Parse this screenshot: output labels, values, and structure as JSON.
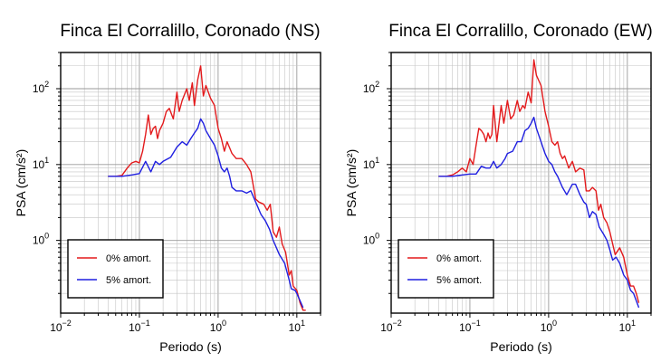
{
  "chart_data": [
    {
      "type": "line",
      "title": "Finca El Corralillo, Coronado (NS)",
      "xlabel": "Periodo (s)",
      "ylabel": "PSA (cm/s²)",
      "xscale": "log",
      "yscale": "log",
      "xlim": [
        0.01,
        20
      ],
      "ylim": [
        0.11,
        300
      ],
      "x_ticks": [
        {
          "base": "10",
          "exp": "−2"
        },
        {
          "base": "10",
          "exp": "−1"
        },
        {
          "base": "10",
          "exp": "0"
        },
        {
          "base": "10",
          "exp": "1"
        }
      ],
      "y_ticks": [
        {
          "base": "10",
          "exp": "0"
        },
        {
          "base": "10",
          "exp": "1"
        },
        {
          "base": "10",
          "exp": "2"
        }
      ],
      "grid": true,
      "legend": "bottom-left",
      "series": [
        {
          "name": "0% amort.",
          "color": "#e31a1c",
          "points": [
            [
              0.04,
              7
            ],
            [
              0.05,
              7
            ],
            [
              0.06,
              7.2
            ],
            [
              0.07,
              9
            ],
            [
              0.08,
              10.5
            ],
            [
              0.09,
              11
            ],
            [
              0.1,
              10.5
            ],
            [
              0.11,
              15
            ],
            [
              0.12,
              25
            ],
            [
              0.13,
              45
            ],
            [
              0.14,
              25
            ],
            [
              0.15,
              30
            ],
            [
              0.16,
              32
            ],
            [
              0.17,
              22
            ],
            [
              0.18,
              28
            ],
            [
              0.2,
              35
            ],
            [
              0.22,
              50
            ],
            [
              0.24,
              55
            ],
            [
              0.27,
              40
            ],
            [
              0.3,
              90
            ],
            [
              0.32,
              50
            ],
            [
              0.35,
              70
            ],
            [
              0.4,
              100
            ],
            [
              0.43,
              70
            ],
            [
              0.47,
              120
            ],
            [
              0.5,
              60
            ],
            [
              0.55,
              130
            ],
            [
              0.6,
              200
            ],
            [
              0.65,
              80
            ],
            [
              0.7,
              110
            ],
            [
              0.8,
              75
            ],
            [
              0.9,
              60
            ],
            [
              1.0,
              30
            ],
            [
              1.1,
              22
            ],
            [
              1.2,
              15
            ],
            [
              1.3,
              20
            ],
            [
              1.5,
              14
            ],
            [
              1.7,
              12
            ],
            [
              2.0,
              12
            ],
            [
              2.3,
              10
            ],
            [
              2.6,
              8
            ],
            [
              3.0,
              3.5
            ],
            [
              3.3,
              3.2
            ],
            [
              3.8,
              3
            ],
            [
              4.2,
              2.5
            ],
            [
              4.6,
              3
            ],
            [
              5.0,
              1.3
            ],
            [
              5.5,
              1.1
            ],
            [
              6.0,
              1.5
            ],
            [
              6.5,
              0.9
            ],
            [
              7.2,
              0.7
            ],
            [
              8.0,
              0.35
            ],
            [
              8.5,
              0.4
            ],
            [
              9.0,
              0.25
            ],
            [
              10,
              0.22
            ],
            [
              11,
              0.15
            ],
            [
              12,
              0.12
            ],
            [
              13,
              0.12
            ]
          ]
        },
        {
          "name": "5% amort.",
          "color": "#1f1fe0",
          "points": [
            [
              0.04,
              7
            ],
            [
              0.06,
              7
            ],
            [
              0.08,
              7.3
            ],
            [
              0.1,
              7.6
            ],
            [
              0.12,
              11
            ],
            [
              0.14,
              8
            ],
            [
              0.16,
              11
            ],
            [
              0.18,
              10
            ],
            [
              0.2,
              11
            ],
            [
              0.25,
              12.5
            ],
            [
              0.3,
              17
            ],
            [
              0.35,
              20
            ],
            [
              0.4,
              18
            ],
            [
              0.45,
              22
            ],
            [
              0.5,
              26
            ],
            [
              0.55,
              30
            ],
            [
              0.6,
              40
            ],
            [
              0.65,
              35
            ],
            [
              0.7,
              28
            ],
            [
              0.8,
              22
            ],
            [
              0.9,
              18
            ],
            [
              1.0,
              13
            ],
            [
              1.1,
              9
            ],
            [
              1.2,
              8
            ],
            [
              1.3,
              9
            ],
            [
              1.4,
              7
            ],
            [
              1.5,
              5
            ],
            [
              1.7,
              4.5
            ],
            [
              2.0,
              4.5
            ],
            [
              2.3,
              4.2
            ],
            [
              2.6,
              4.5
            ],
            [
              3.0,
              3.2
            ],
            [
              3.5,
              2.2
            ],
            [
              4.0,
              1.8
            ],
            [
              4.5,
              1.4
            ],
            [
              5.0,
              1
            ],
            [
              5.5,
              0.8
            ],
            [
              6.0,
              0.65
            ],
            [
              7.0,
              0.5
            ],
            [
              8.0,
              0.3
            ],
            [
              8.5,
              0.23
            ],
            [
              9.5,
              0.22
            ],
            [
              10,
              0.2
            ],
            [
              11,
              0.16
            ],
            [
              12,
              0.13
            ]
          ]
        }
      ]
    },
    {
      "type": "line",
      "title": "Finca El Corralillo, Coronado (EW)",
      "xlabel": "Periodo (s)",
      "ylabel": "PSA (cm/s²)",
      "xscale": "log",
      "yscale": "log",
      "xlim": [
        0.01,
        20
      ],
      "ylim": [
        0.11,
        300
      ],
      "x_ticks": [
        {
          "base": "10",
          "exp": "−2"
        },
        {
          "base": "10",
          "exp": "−1"
        },
        {
          "base": "10",
          "exp": "0"
        },
        {
          "base": "10",
          "exp": "1"
        }
      ],
      "y_ticks": [
        {
          "base": "10",
          "exp": "0"
        },
        {
          "base": "10",
          "exp": "1"
        },
        {
          "base": "10",
          "exp": "2"
        }
      ],
      "grid": true,
      "legend": "bottom-left",
      "series": [
        {
          "name": "0% amort.",
          "color": "#e31a1c",
          "points": [
            [
              0.04,
              7
            ],
            [
              0.05,
              7
            ],
            [
              0.06,
              7.3
            ],
            [
              0.07,
              8
            ],
            [
              0.08,
              9
            ],
            [
              0.09,
              8
            ],
            [
              0.1,
              12
            ],
            [
              0.11,
              10
            ],
            [
              0.12,
              18
            ],
            [
              0.13,
              30
            ],
            [
              0.14,
              28
            ],
            [
              0.15,
              25
            ],
            [
              0.16,
              20
            ],
            [
              0.17,
              26
            ],
            [
              0.18,
              22
            ],
            [
              0.19,
              25
            ],
            [
              0.2,
              60
            ],
            [
              0.22,
              20
            ],
            [
              0.25,
              60
            ],
            [
              0.27,
              35
            ],
            [
              0.3,
              70
            ],
            [
              0.33,
              40
            ],
            [
              0.36,
              45
            ],
            [
              0.4,
              70
            ],
            [
              0.43,
              50
            ],
            [
              0.47,
              60
            ],
            [
              0.5,
              55
            ],
            [
              0.55,
              90
            ],
            [
              0.6,
              65
            ],
            [
              0.65,
              240
            ],
            [
              0.7,
              150
            ],
            [
              0.8,
              110
            ],
            [
              0.9,
              50
            ],
            [
              1.0,
              32
            ],
            [
              1.1,
              20
            ],
            [
              1.2,
              18
            ],
            [
              1.3,
              20
            ],
            [
              1.4,
              14
            ],
            [
              1.5,
              12
            ],
            [
              1.6,
              13
            ],
            [
              1.8,
              9
            ],
            [
              2.0,
              11
            ],
            [
              2.2,
              8
            ],
            [
              2.5,
              9
            ],
            [
              2.8,
              8.5
            ],
            [
              3.0,
              4.5
            ],
            [
              3.3,
              4.5
            ],
            [
              3.6,
              5
            ],
            [
              4.0,
              4.5
            ],
            [
              4.3,
              2.5
            ],
            [
              4.6,
              3
            ],
            [
              5.0,
              2
            ],
            [
              5.5,
              1.7
            ],
            [
              6.0,
              1.3
            ],
            [
              6.5,
              0.9
            ],
            [
              7.0,
              0.65
            ],
            [
              8.0,
              0.8
            ],
            [
              9.0,
              0.6
            ],
            [
              10,
              0.35
            ],
            [
              11,
              0.25
            ],
            [
              12,
              0.25
            ],
            [
              13,
              0.2
            ],
            [
              14,
              0.15
            ]
          ]
        },
        {
          "name": "5% amort.",
          "color": "#1f1fe0",
          "points": [
            [
              0.04,
              7
            ],
            [
              0.06,
              7
            ],
            [
              0.08,
              7.3
            ],
            [
              0.1,
              7.5
            ],
            [
              0.12,
              7.5
            ],
            [
              0.14,
              9.5
            ],
            [
              0.16,
              9
            ],
            [
              0.18,
              9
            ],
            [
              0.2,
              11
            ],
            [
              0.22,
              9
            ],
            [
              0.25,
              10
            ],
            [
              0.28,
              12
            ],
            [
              0.3,
              14
            ],
            [
              0.35,
              15
            ],
            [
              0.4,
              20
            ],
            [
              0.45,
              20
            ],
            [
              0.5,
              28
            ],
            [
              0.55,
              30
            ],
            [
              0.6,
              35
            ],
            [
              0.65,
              42
            ],
            [
              0.7,
              30
            ],
            [
              0.8,
              20
            ],
            [
              0.9,
              14
            ],
            [
              1.0,
              11
            ],
            [
              1.1,
              10
            ],
            [
              1.2,
              8
            ],
            [
              1.3,
              7
            ],
            [
              1.5,
              5
            ],
            [
              1.7,
              4
            ],
            [
              2.0,
              5.5
            ],
            [
              2.2,
              5.5
            ],
            [
              2.5,
              4
            ],
            [
              2.8,
              3.2
            ],
            [
              3.0,
              3
            ],
            [
              3.3,
              2
            ],
            [
              3.6,
              2.4
            ],
            [
              4.0,
              2.2
            ],
            [
              4.4,
              1.5
            ],
            [
              5.0,
              1.2
            ],
            [
              5.5,
              1
            ],
            [
              6.0,
              0.75
            ],
            [
              6.5,
              0.55
            ],
            [
              7.2,
              0.6
            ],
            [
              8.0,
              0.5
            ],
            [
              9.0,
              0.35
            ],
            [
              10,
              0.3
            ],
            [
              11,
              0.22
            ],
            [
              12,
              0.2
            ],
            [
              14,
              0.13
            ]
          ]
        }
      ]
    }
  ]
}
